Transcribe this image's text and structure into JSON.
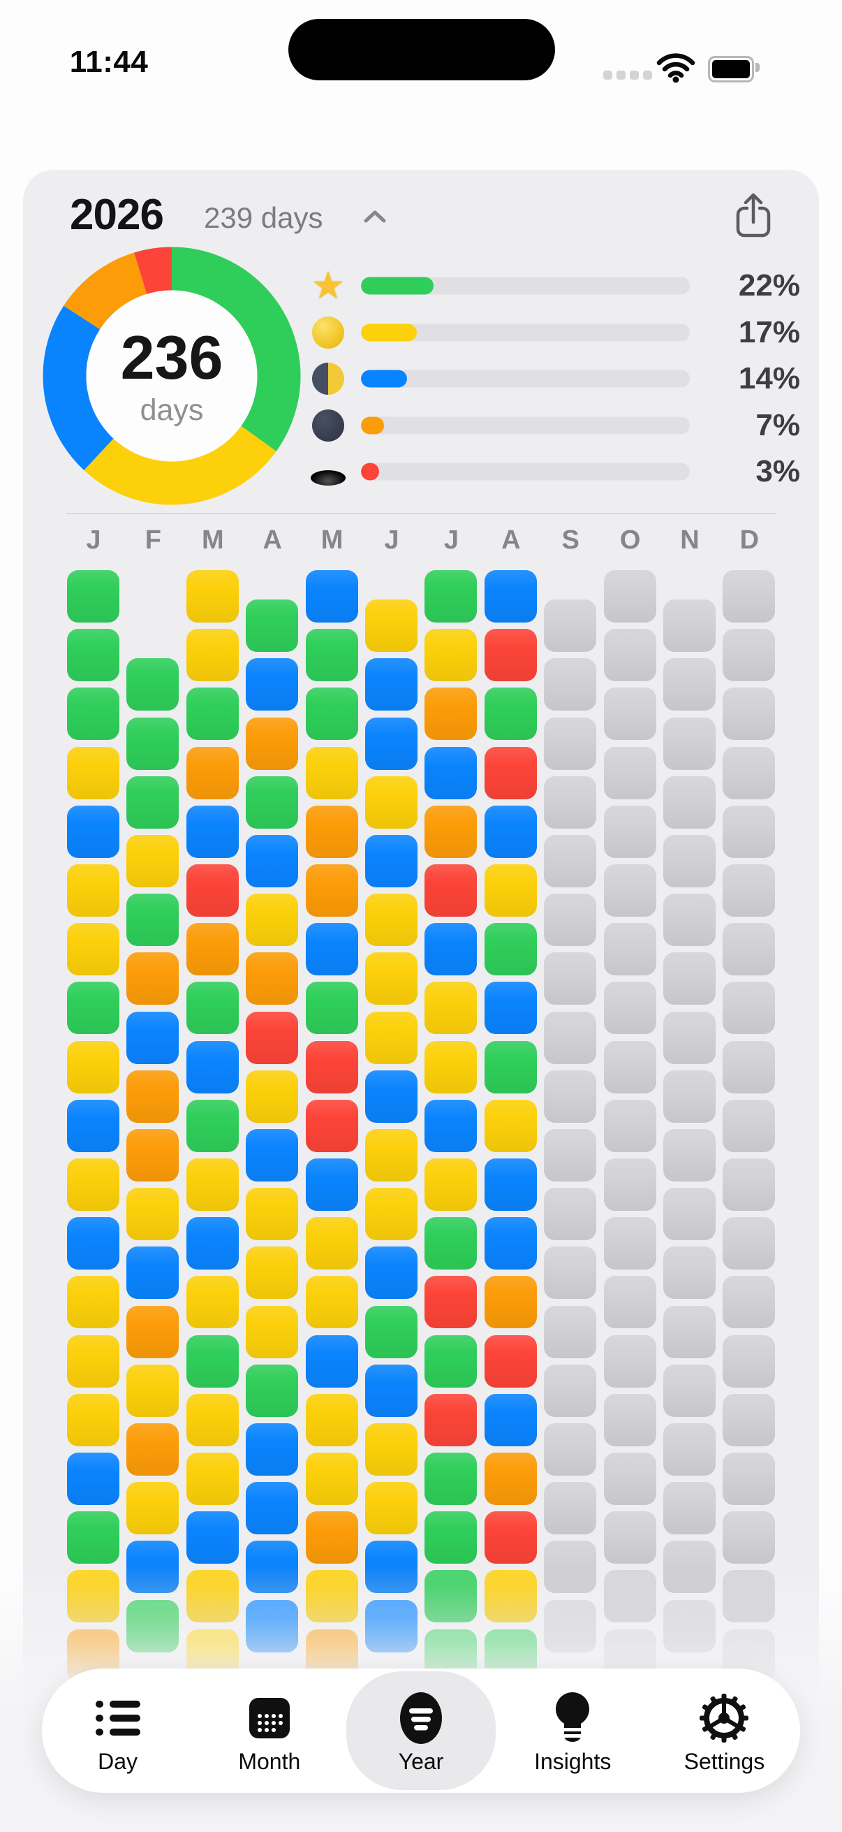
{
  "status_bar": {
    "time": "11:44"
  },
  "header": {
    "year": "2026",
    "subtitle": "239 days"
  },
  "donut": {
    "center_value": "236",
    "center_label": "days"
  },
  "summary": {
    "segments": [
      {
        "name": "star",
        "icon": "star-icon",
        "color": "#2FCE5A",
        "percent": 22,
        "label": "22%"
      },
      {
        "name": "full-moon",
        "icon": "full-moon-icon",
        "color": "#FCD00A",
        "percent": 17,
        "label": "17%"
      },
      {
        "name": "half-moon",
        "icon": "half-moon-icon",
        "color": "#0A84FE",
        "percent": 14,
        "label": "14%"
      },
      {
        "name": "new-moon",
        "icon": "new-moon-icon",
        "color": "#FC9C08",
        "percent": 7,
        "label": "7%"
      },
      {
        "name": "hole",
        "icon": "hole-icon",
        "color": "#FC4438",
        "percent": 3,
        "label": "3%"
      }
    ]
  },
  "chart_data": {
    "type": "pie",
    "title": "2026 tracked days by mood",
    "labels": [
      "star",
      "full-moon",
      "half-moon",
      "new-moon",
      "hole"
    ],
    "values": [
      22,
      17,
      14,
      7,
      3
    ],
    "center_value": "236",
    "center_label": "days",
    "legend_position": "right"
  },
  "calendar": {
    "palette": {
      "g": "#2FCE5A",
      "y": "#FCD00A",
      "b": "#0A84FE",
      "o": "#FC9C08",
      "r": "#FC4438",
      "x": "#D2D2D7"
    },
    "months": [
      {
        "label": "J",
        "name": "January",
        "offset_rows": 0,
        "days": [
          "g",
          "g",
          "g",
          "y",
          "b",
          "y",
          "y",
          "g",
          "y",
          "b",
          "y",
          "b",
          "y",
          "y",
          "y",
          "b",
          "g",
          "y",
          "o"
        ]
      },
      {
        "label": "F",
        "name": "February",
        "offset_rows": 1.5,
        "days": [
          "g",
          "g",
          "g",
          "y",
          "g",
          "o",
          "b",
          "o",
          "o",
          "y",
          "b",
          "o",
          "y",
          "o",
          "y",
          "b",
          "g"
        ]
      },
      {
        "label": "M",
        "name": "March",
        "offset_rows": 0,
        "days": [
          "y",
          "y",
          "g",
          "o",
          "b",
          "r",
          "o",
          "g",
          "b",
          "g",
          "y",
          "b",
          "y",
          "g",
          "y",
          "y",
          "b",
          "y",
          "y"
        ]
      },
      {
        "label": "A",
        "name": "April",
        "offset_rows": 0.5,
        "days": [
          "g",
          "b",
          "o",
          "g",
          "b",
          "y",
          "o",
          "r",
          "y",
          "b",
          "y",
          "y",
          "y",
          "g",
          "b",
          "b",
          "b",
          "b"
        ]
      },
      {
        "label": "M",
        "name": "May",
        "offset_rows": 0,
        "days": [
          "b",
          "g",
          "g",
          "y",
          "o",
          "o",
          "b",
          "g",
          "r",
          "r",
          "b",
          "y",
          "y",
          "b",
          "y",
          "y",
          "o",
          "y",
          "o"
        ]
      },
      {
        "label": "J",
        "name": "June",
        "offset_rows": 0.5,
        "days": [
          "y",
          "b",
          "b",
          "y",
          "b",
          "y",
          "y",
          "y",
          "b",
          "y",
          "y",
          "b",
          "g",
          "b",
          "y",
          "y",
          "b",
          "b"
        ]
      },
      {
        "label": "J",
        "name": "July",
        "offset_rows": 0,
        "days": [
          "g",
          "y",
          "o",
          "b",
          "o",
          "r",
          "b",
          "y",
          "y",
          "b",
          "y",
          "g",
          "r",
          "g",
          "r",
          "g",
          "g",
          "g",
          "g"
        ]
      },
      {
        "label": "A",
        "name": "August",
        "offset_rows": 0,
        "days": [
          "b",
          "r",
          "g",
          "r",
          "b",
          "y",
          "g",
          "b",
          "g",
          "y",
          "b",
          "b",
          "o",
          "r",
          "b",
          "o",
          "r",
          "y",
          "g"
        ]
      },
      {
        "label": "S",
        "name": "September",
        "offset_rows": 0.5,
        "days": [
          "x",
          "x",
          "x",
          "x",
          "x",
          "x",
          "x",
          "x",
          "x",
          "x",
          "x",
          "x",
          "x",
          "x",
          "x",
          "x",
          "x",
          "x"
        ]
      },
      {
        "label": "O",
        "name": "October",
        "offset_rows": 0,
        "days": [
          "x",
          "x",
          "x",
          "x",
          "x",
          "x",
          "x",
          "x",
          "x",
          "x",
          "x",
          "x",
          "x",
          "x",
          "x",
          "x",
          "x",
          "x",
          "x"
        ]
      },
      {
        "label": "N",
        "name": "November",
        "offset_rows": 0.5,
        "days": [
          "x",
          "x",
          "x",
          "x",
          "x",
          "x",
          "x",
          "x",
          "x",
          "x",
          "x",
          "x",
          "x",
          "x",
          "x",
          "x",
          "x",
          "x"
        ]
      },
      {
        "label": "D",
        "name": "December",
        "offset_rows": 0,
        "days": [
          "x",
          "x",
          "x",
          "x",
          "x",
          "x",
          "x",
          "x",
          "x",
          "x",
          "x",
          "x",
          "x",
          "x",
          "x",
          "x",
          "x",
          "x",
          "x"
        ]
      }
    ]
  },
  "tab_bar": {
    "items": [
      {
        "label": "Day",
        "icon": "day-list-icon",
        "active": false
      },
      {
        "label": "Month",
        "icon": "month-calendar-icon",
        "active": false
      },
      {
        "label": "Year",
        "icon": "year-circle-icon",
        "active": true
      },
      {
        "label": "Insights",
        "icon": "insights-bulb-icon",
        "active": false
      },
      {
        "label": "Settings",
        "icon": "settings-gear-icon",
        "active": false
      }
    ]
  }
}
